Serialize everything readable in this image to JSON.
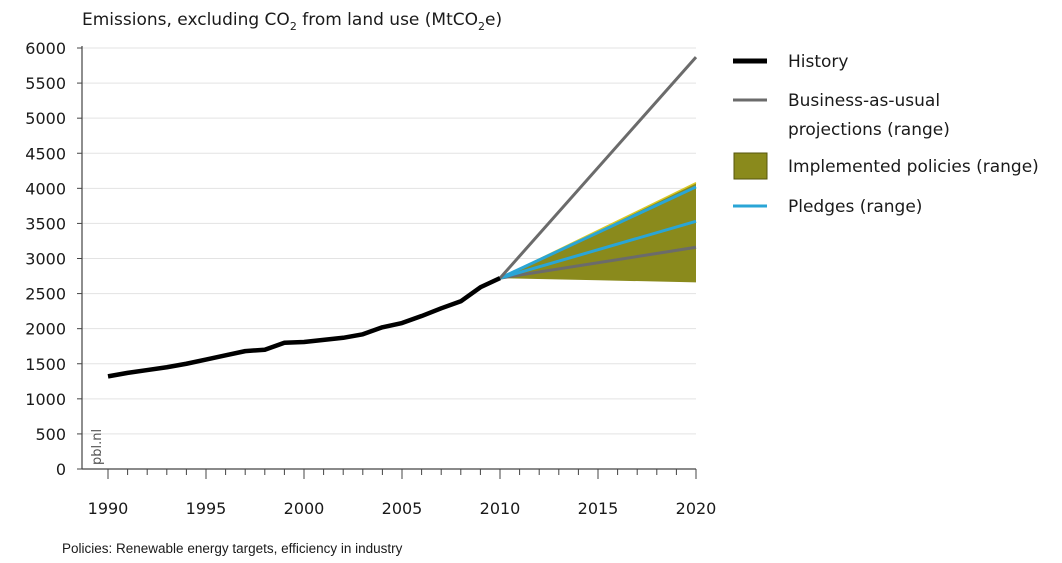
{
  "chart_data": {
    "type": "line",
    "title_parts": [
      "Emissions, excluding CO",
      "2",
      " from land use (MtCO",
      "2",
      "e)"
    ],
    "ylim": [
      0,
      6000
    ],
    "xlim": [
      1990,
      2020
    ],
    "y_ticks": [
      0,
      500,
      1000,
      1500,
      2000,
      2500,
      3000,
      3500,
      4000,
      4500,
      5000,
      5500,
      6000
    ],
    "x_ticks": [
      1990,
      1995,
      2000,
      2005,
      2010,
      2015,
      2020
    ],
    "grid": true,
    "legend_position": "right",
    "source_label": "pbl.nl",
    "history": {
      "x": [
        1990,
        1991,
        1992,
        1993,
        1994,
        1995,
        1996,
        1997,
        1998,
        1999,
        2000,
        2001,
        2002,
        2003,
        2004,
        2005,
        2006,
        2007,
        2008,
        2009,
        2010
      ],
      "y": [
        1320,
        1370,
        1410,
        1450,
        1500,
        1560,
        1620,
        1680,
        1700,
        1800,
        1810,
        1840,
        1870,
        1920,
        2020,
        2080,
        2180,
        2290,
        2390,
        2590,
        2720
      ]
    },
    "business_as_usual": {
      "x": [
        2010,
        2020
      ],
      "y": [
        2720,
        5870
      ]
    },
    "implemented_policies_range": {
      "x": [
        2010,
        2015,
        2020
      ],
      "lower": [
        2720,
        2690,
        2660
      ],
      "upper": [
        2720,
        3400,
        4080
      ]
    },
    "pledges": [
      {
        "x": [
          2010,
          2020
        ],
        "y": [
          2720,
          4020
        ]
      },
      {
        "x": [
          2010,
          2020
        ],
        "y": [
          2720,
          3530
        ]
      }
    ],
    "policy_midline": {
      "x": [
        2010,
        2020
      ],
      "y": [
        2720,
        3160
      ]
    },
    "legend": [
      {
        "label": "History",
        "kind": "line",
        "color": "#000000"
      },
      {
        "label_lines": [
          "Business-as-usual",
          "projections (range)"
        ],
        "kind": "line",
        "color": "#6b6b6b"
      },
      {
        "label": "Implemented policies (range)",
        "kind": "box",
        "color": "#8a8a1c"
      },
      {
        "label": "Pledges (range)",
        "kind": "line",
        "color": "#2aa5d6"
      }
    ]
  },
  "footnote": "Policies: Renewable energy targets, efficiency in industry",
  "colors": {
    "history": "#000000",
    "bau": "#6b6b6b",
    "policies_fill": "#8a8a1c",
    "policies_edge": "#d9c825",
    "pledges": "#2aa5d6",
    "grid": "#e3e3e3",
    "axis": "#444444"
  }
}
